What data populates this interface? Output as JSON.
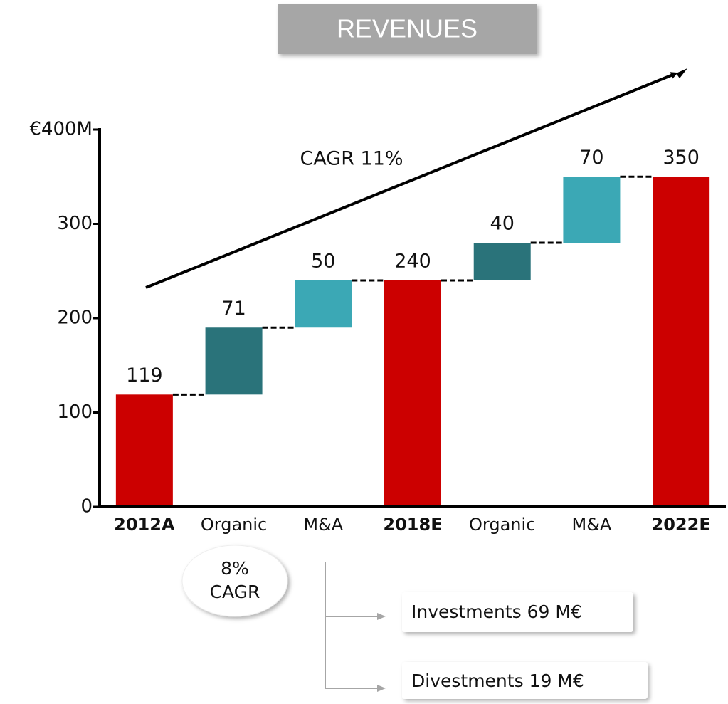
{
  "chart_data": {
    "type": "waterfall",
    "title": "REVENUES",
    "categories": [
      "2012A",
      "Organic",
      "M&A",
      "2018E",
      "Organic",
      "M&A",
      "2022E"
    ],
    "values": [
      119,
      71,
      50,
      240,
      40,
      70,
      350
    ],
    "totals": [
      true,
      false,
      false,
      true,
      false,
      false,
      true
    ],
    "colors": [
      "#cc0000",
      "#2a737a",
      "#3ba8b5",
      "#cc0000",
      "#2a737a",
      "#3ba8b5",
      "#cc0000"
    ],
    "ylim": [
      0,
      400
    ],
    "yticks": [
      0,
      100,
      200,
      300,
      {
        "value": 400,
        "label": "€400M"
      }
    ],
    "annotations": {
      "trend": "CAGR 11%",
      "bubble": [
        "8%",
        "CAGR"
      ],
      "investments": "Investments 69 M€",
      "divestments": "Divestments 19 M€"
    }
  }
}
